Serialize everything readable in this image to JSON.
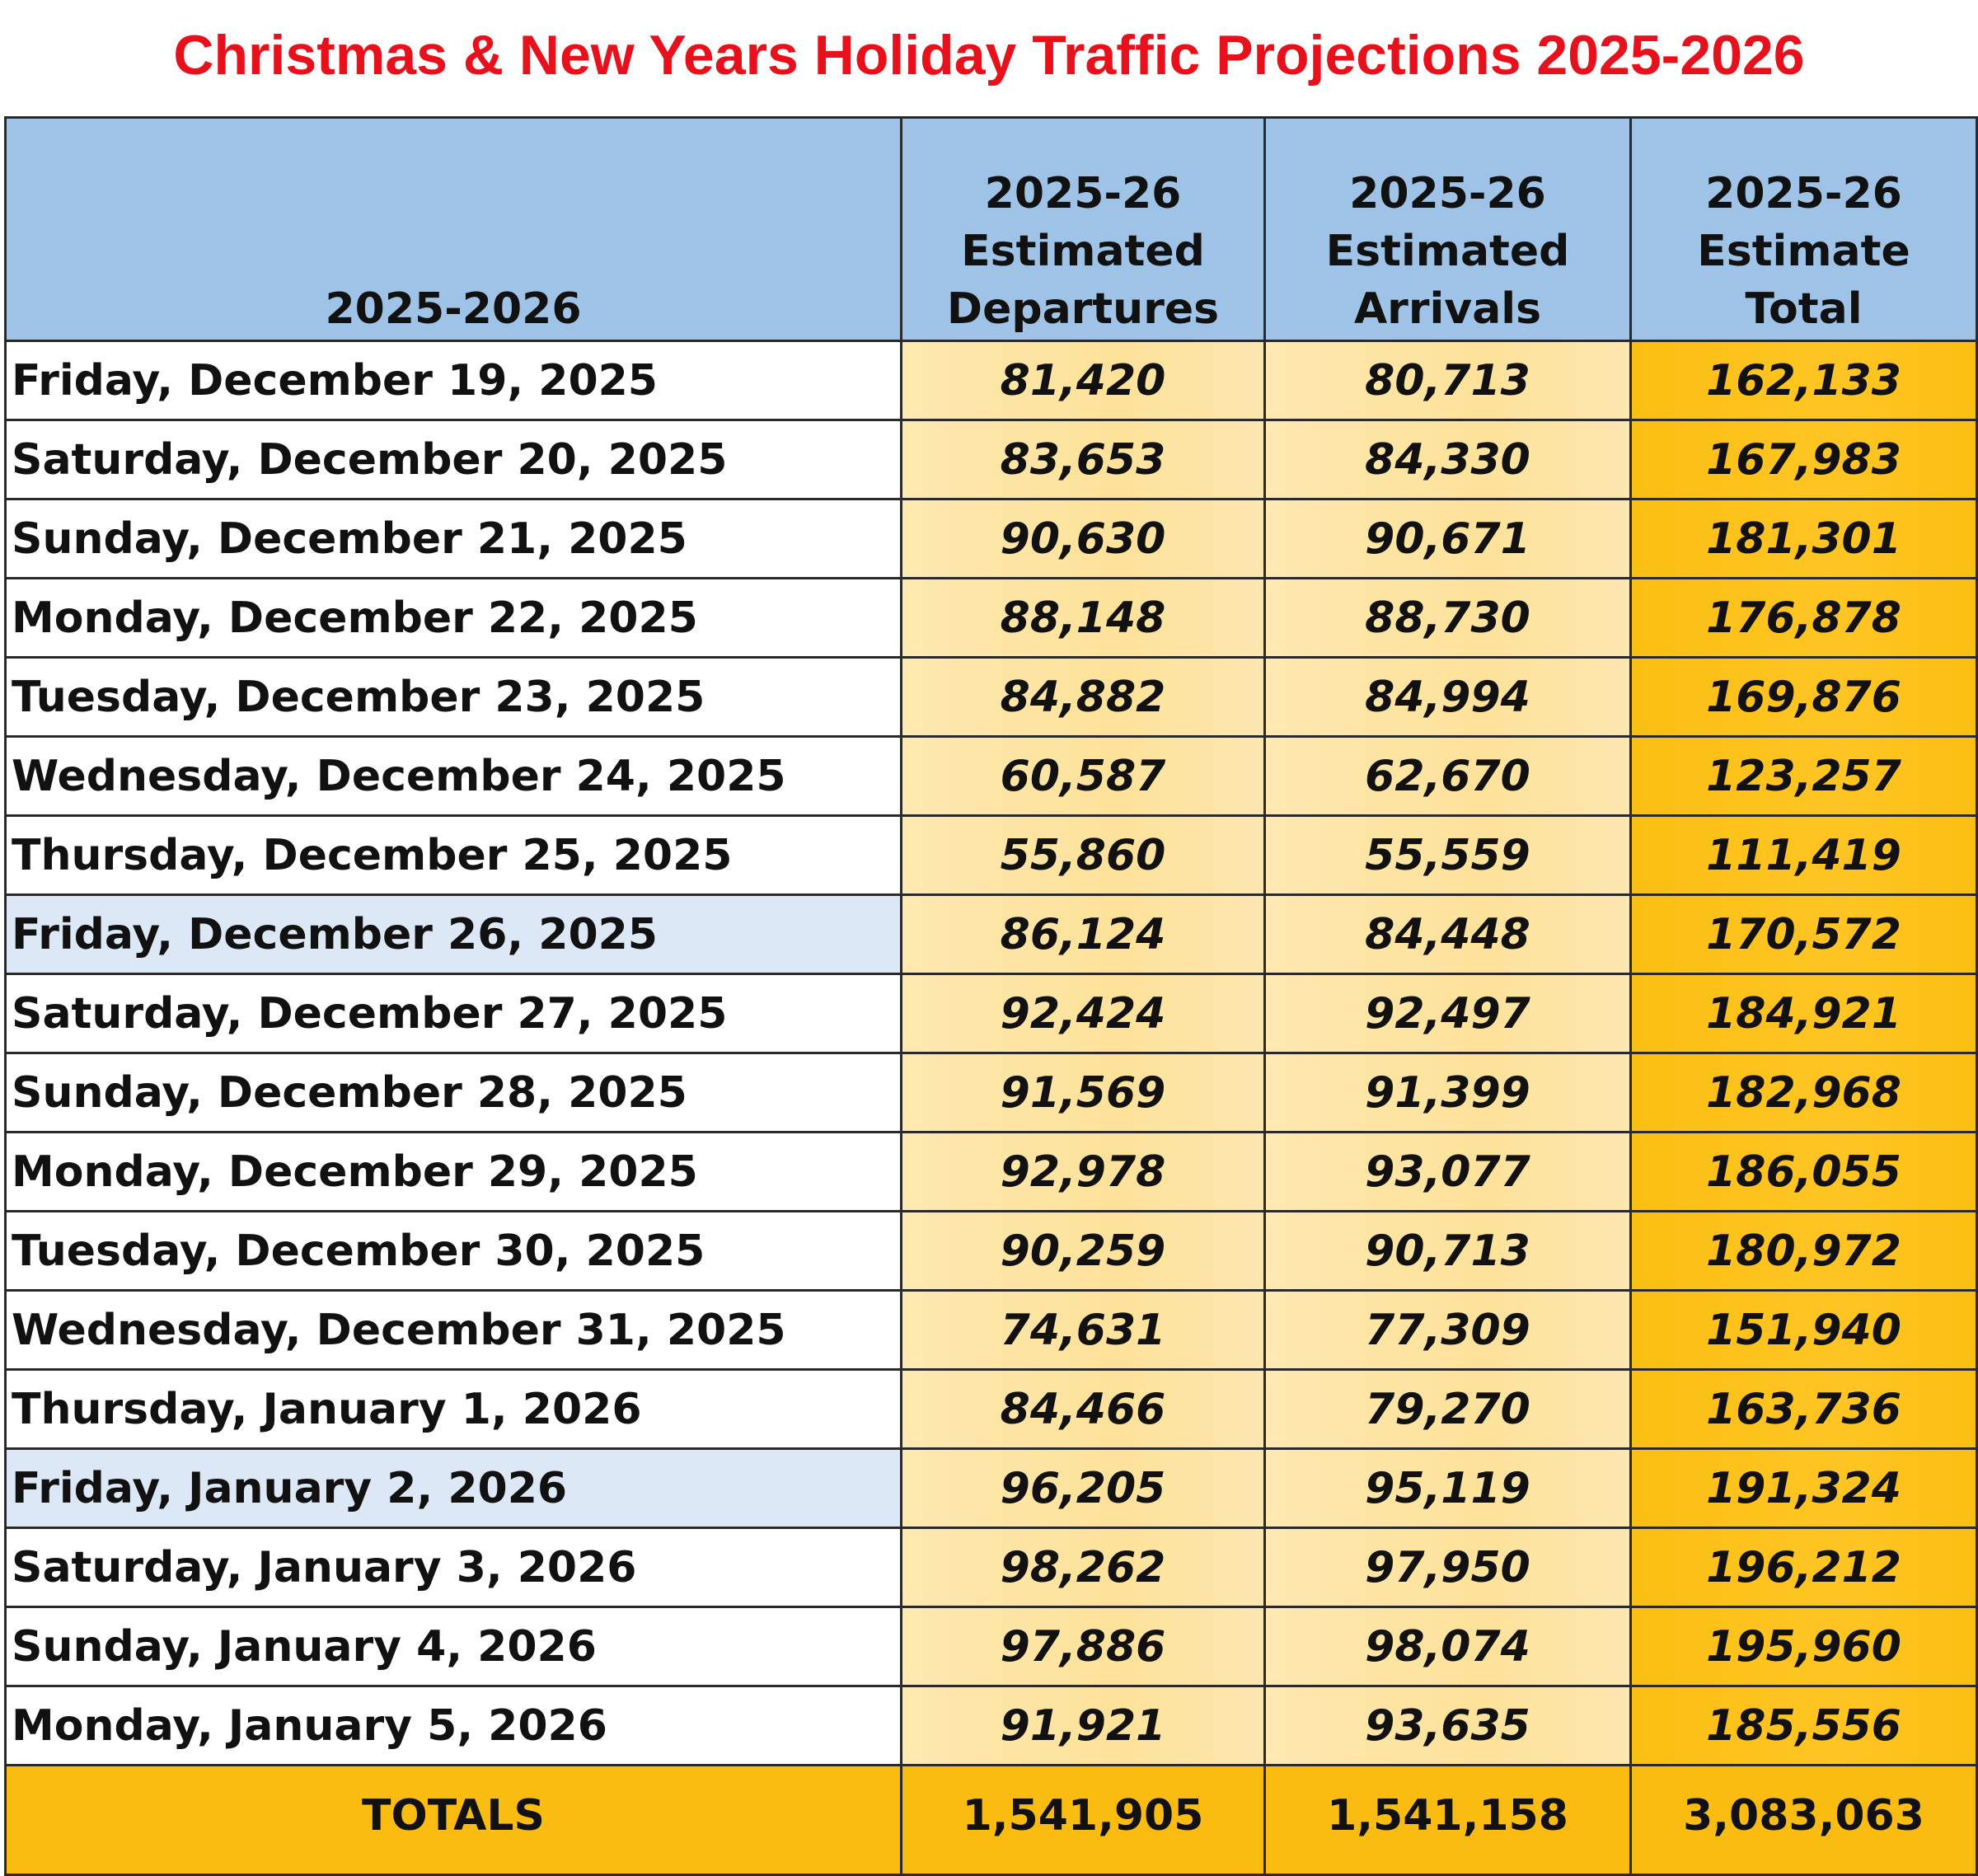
{
  "header": {
    "title": "Christmas & New Years Holiday Traffic Projections 2025-2026"
  },
  "table": {
    "columns": [
      [
        "2025-2026"
      ],
      [
        "2025-26",
        "Estimated",
        "Departures"
      ],
      [
        "2025-26",
        "Estimated",
        "Arrivals"
      ],
      [
        "2025-26",
        "Estimate",
        "Total"
      ]
    ],
    "rows": [
      [
        "Friday, December 19, 2025",
        "81,420",
        "80,713",
        "162,133"
      ],
      [
        "Saturday, December 20, 2025",
        "83,653",
        "84,330",
        "167,983"
      ],
      [
        "Sunday, December 21, 2025",
        "90,630",
        "90,671",
        "181,301"
      ],
      [
        "Monday, December 22, 2025",
        "88,148",
        "88,730",
        "176,878"
      ],
      [
        "Tuesday, December 23, 2025",
        "84,882",
        "84,994",
        "169,876"
      ],
      [
        "Wednesday, December 24, 2025",
        "60,587",
        "62,670",
        "123,257"
      ],
      [
        "Thursday, December 25, 2025",
        "55,860",
        "55,559",
        "111,419"
      ],
      [
        "Friday, December 26, 2025",
        "86,124",
        "84,448",
        "170,572"
      ],
      [
        "Saturday, December 27, 2025",
        "92,424",
        "92,497",
        "184,921"
      ],
      [
        "Sunday, December 28, 2025",
        "91,569",
        "91,399",
        "182,968"
      ],
      [
        "Monday, December 29, 2025",
        "92,978",
        "93,077",
        "186,055"
      ],
      [
        "Tuesday, December 30, 2025",
        "90,259",
        "90,713",
        "180,972"
      ],
      [
        "Wednesday, December 31, 2025",
        "74,631",
        "77,309",
        "151,940"
      ],
      [
        "Thursday, January 1, 2026",
        "84,466",
        "79,270",
        "163,736"
      ],
      [
        "Friday, January 2, 2026",
        "96,205",
        "95,119",
        "191,324"
      ],
      [
        "Saturday, January 3, 2026",
        "98,262",
        "97,950",
        "196,212"
      ],
      [
        "Sunday, January 4, 2026",
        "97,886",
        "98,074",
        "195,960"
      ],
      [
        "Monday, January 5, 2026",
        "91,921",
        "93,635",
        "185,556"
      ]
    ],
    "totals": [
      "TOTALS",
      "1,541,905",
      "1,541,158",
      "3,083,063"
    ]
  }
}
